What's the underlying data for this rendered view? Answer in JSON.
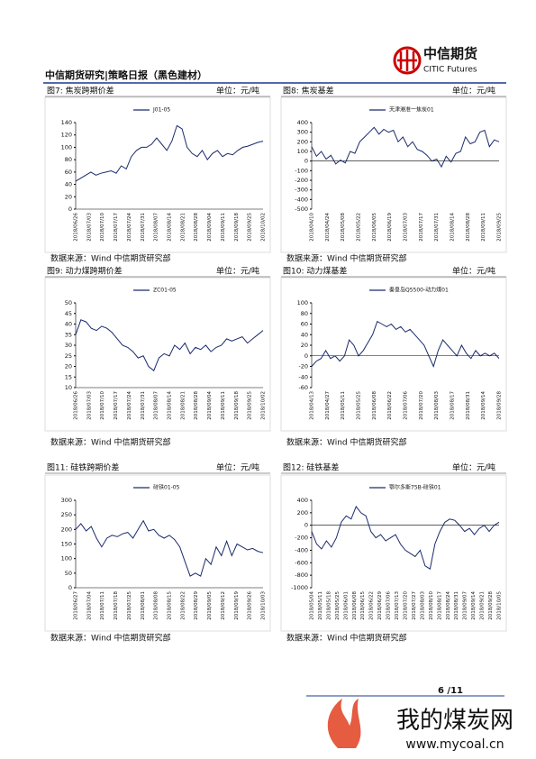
{
  "header": {
    "title": "中信期货研究|策略日报（黑色建材）",
    "logo_cn": "中信期货",
    "logo_en": "CITIC Futures"
  },
  "chart_data": [
    {
      "type": "line",
      "title": "图7: 焦炭跨期价差",
      "unit": "单位：元/吨",
      "source": "数据来源：Wind  中信期货研究部",
      "series": [
        {
          "name": "J01-05",
          "color": "#1a2a6c",
          "values": [
            45,
            50,
            55,
            60,
            55,
            58,
            60,
            62,
            58,
            70,
            65,
            85,
            95,
            100,
            100,
            105,
            115,
            105,
            95,
            110,
            135,
            130,
            100,
            90,
            85,
            95,
            80,
            90,
            95,
            85,
            90,
            88,
            95,
            100,
            102,
            105,
            108,
            110
          ]
        }
      ],
      "ylim": [
        0,
        140
      ],
      "yticks": [
        0,
        20,
        40,
        60,
        80,
        100,
        120,
        140
      ],
      "xticks": [
        "2018/06/26",
        "2018/07/03",
        "2018/07/10",
        "2018/07/17",
        "2018/07/24",
        "2018/07/31",
        "2018/08/07",
        "2018/08/14",
        "2018/08/21",
        "2018/08/28",
        "2018/09/04",
        "2018/09/11",
        "2018/09/18",
        "2018/09/25",
        "2018/10/02"
      ]
    },
    {
      "type": "line",
      "title": "图8: 焦炭基差",
      "unit": "单位：元/吨",
      "source": "数据来源：Wind  中信期货研究部",
      "series": [
        {
          "name": "天津港准一焦炭01",
          "color": "#1a2a6c",
          "values": [
            150,
            50,
            100,
            20,
            60,
            -30,
            10,
            -20,
            100,
            80,
            200,
            250,
            300,
            350,
            280,
            330,
            300,
            320,
            200,
            250,
            150,
            200,
            120,
            100,
            60,
            0,
            20,
            -60,
            50,
            -10,
            80,
            100,
            250,
            180,
            200,
            300,
            320,
            150,
            220,
            200
          ]
        }
      ],
      "ylim": [
        -500,
        400
      ],
      "yticks": [
        -500,
        -400,
        -300,
        -200,
        -100,
        0,
        100,
        200,
        300,
        400
      ],
      "xticks": [
        "2018/04/10",
        "2018/04/24",
        "2018/05/08",
        "2018/05/22",
        "2018/06/05",
        "2018/06/19",
        "2018/07/03",
        "2018/07/17",
        "2018/07/31",
        "2018/08/14",
        "2018/08/28",
        "2018/09/11",
        "2018/09/25"
      ]
    },
    {
      "type": "line",
      "title": "图9: 动力煤跨期价差",
      "unit": "单位：元/吨",
      "source": "数据来源：Wind  中信期货研究部",
      "series": [
        {
          "name": "ZC01-05",
          "color": "#1a2a6c",
          "values": [
            35,
            42,
            41,
            38,
            37,
            39,
            38,
            36,
            33,
            30,
            29,
            27,
            24,
            25,
            20,
            18,
            24,
            26,
            25,
            30,
            28,
            31,
            26,
            29,
            28,
            30,
            27,
            29,
            30,
            33,
            32,
            33,
            34,
            31,
            33,
            35,
            37
          ]
        }
      ],
      "ylim": [
        10,
        50
      ],
      "yticks": [
        10,
        15,
        20,
        25,
        30,
        35,
        40,
        45,
        50
      ],
      "xticks": [
        "2018/06/26",
        "2018/07/03",
        "2018/07/10",
        "2018/07/17",
        "2018/07/24",
        "2018/07/31",
        "2018/08/07",
        "2018/08/14",
        "2018/08/21",
        "2018/08/28",
        "2018/09/04",
        "2018/09/11",
        "2018/09/18",
        "2018/09/25",
        "2018/10/02"
      ]
    },
    {
      "type": "line",
      "title": "图10: 动力煤基差",
      "unit": "单位：元/吨",
      "source": "数据来源：Wind  中信期货研究部",
      "series": [
        {
          "name": "秦皇岛Q5500-动力煤01",
          "color": "#1a2a6c",
          "values": [
            -20,
            -10,
            -5,
            10,
            -5,
            0,
            -10,
            0,
            30,
            20,
            0,
            10,
            25,
            40,
            65,
            60,
            55,
            60,
            50,
            55,
            45,
            50,
            40,
            30,
            20,
            0,
            -20,
            10,
            30,
            20,
            10,
            0,
            20,
            5,
            -5,
            10,
            0,
            5,
            0,
            5,
            -5
          ]
        }
      ],
      "ylim": [
        -60,
        100
      ],
      "yticks": [
        -60,
        -40,
        -20,
        0,
        20,
        40,
        60,
        80,
        100
      ],
      "xticks": [
        "2018/04/13",
        "2018/04/27",
        "2018/05/11",
        "2018/05/25",
        "2018/06/08",
        "2018/06/22",
        "2018/07/06",
        "2018/07/20",
        "2018/08/03",
        "2018/08/17",
        "2018/08/31",
        "2018/09/14",
        "2018/09/28"
      ]
    },
    {
      "type": "line",
      "title": "图11: 硅铁跨期价差",
      "unit": "单位：元/吨",
      "source": "数据来源：Wind  中信期货研究部",
      "series": [
        {
          "name": "硅铁01-05",
          "color": "#1a2a6c",
          "values": [
            200,
            220,
            195,
            210,
            170,
            140,
            170,
            180,
            175,
            185,
            190,
            170,
            200,
            230,
            195,
            200,
            180,
            170,
            180,
            165,
            140,
            90,
            40,
            50,
            40,
            100,
            80,
            140,
            110,
            160,
            110,
            150,
            140,
            130,
            135,
            125,
            120
          ]
        }
      ],
      "ylim": [
        0,
        300
      ],
      "yticks": [
        0,
        50,
        100,
        150,
        200,
        250,
        300
      ],
      "xticks": [
        "2018/06/27",
        "2018/07/04",
        "2018/07/11",
        "2018/07/18",
        "2018/07/25",
        "2018/08/01",
        "2018/08/08",
        "2018/08/15",
        "2018/08/22",
        "2018/08/29",
        "2018/09/05",
        "2018/09/12",
        "2018/09/19",
        "2018/09/26",
        "2018/10/03"
      ]
    },
    {
      "type": "line",
      "title": "图12: 硅铁基差",
      "unit": "单位：元/吨",
      "source": "数据来源：Wind  中信期货研究部",
      "series": [
        {
          "name": "鄂尔多斯75B-硅铁01",
          "color": "#1a2a6c",
          "values": [
            -100,
            -300,
            -380,
            -250,
            -350,
            -200,
            50,
            150,
            100,
            300,
            200,
            150,
            -100,
            -200,
            -150,
            -250,
            -200,
            -150,
            -300,
            -400,
            -450,
            -500,
            -400,
            -650,
            -700,
            -300,
            -100,
            50,
            100,
            80,
            0,
            -100,
            -50,
            -150,
            -50,
            0,
            -100,
            0,
            50
          ]
        }
      ],
      "ylim": [
        -1000,
        400
      ],
      "yticks": [
        -1000,
        -800,
        -600,
        -400,
        -200,
        0,
        200,
        400
      ],
      "xticks": [
        "2018/05/04",
        "2018/05/11",
        "2018/05/18",
        "2018/05/25",
        "2018/06/01",
        "2018/06/08",
        "2018/06/15",
        "2018/06/22",
        "2018/06/29",
        "2018/07/06",
        "2018/07/13",
        "2018/07/20",
        "2018/07/27",
        "2018/08/03",
        "2018/08/10",
        "2018/08/17",
        "2018/08/24",
        "2018/08/31",
        "2018/09/07",
        "2018/09/14",
        "2018/09/21",
        "2018/09/28",
        "2018/10/05"
      ]
    }
  ],
  "page_number": "6 /11",
  "watermark": {
    "title": "我的煤炭网",
    "url": "www.mycoal.cn"
  }
}
